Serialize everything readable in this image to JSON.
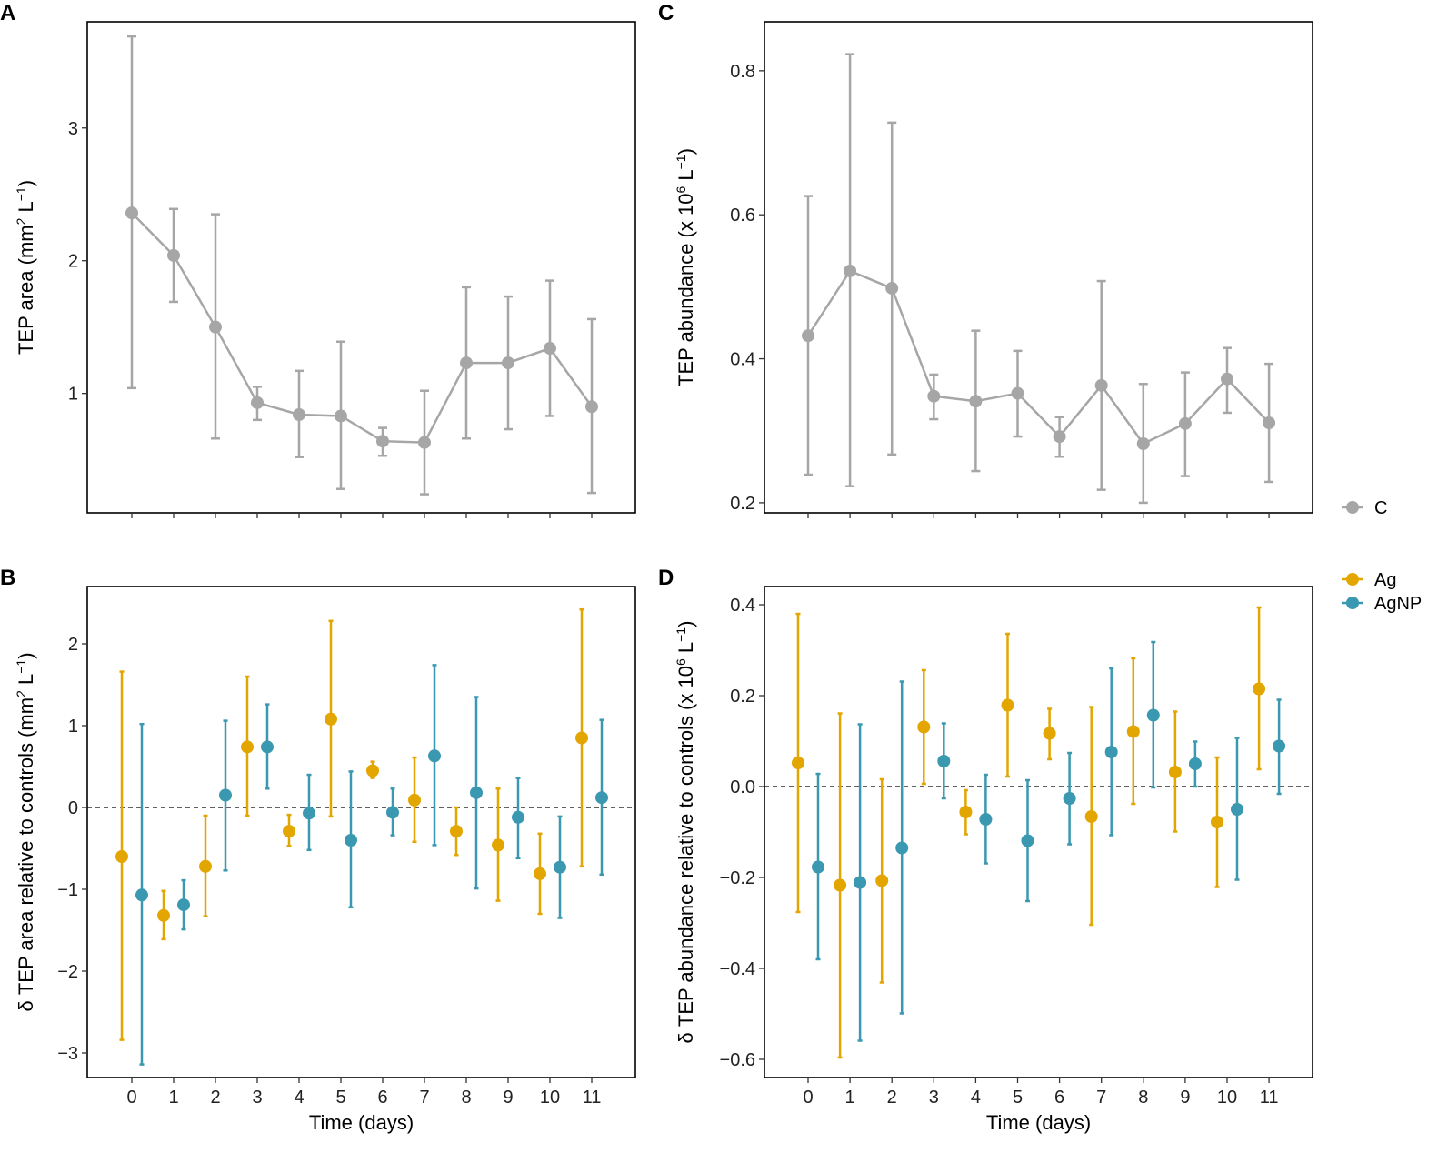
{
  "colors": {
    "C": "#a6a6a6",
    "Ag": "#e3a500",
    "AgNP": "#3a98b0"
  },
  "legend": [
    {
      "key": "C",
      "label": "C"
    },
    {
      "key": "Ag",
      "label": "Ag"
    },
    {
      "key": "AgNP",
      "label": "AgNP"
    }
  ],
  "chart_data": [
    {
      "panel": "A",
      "type": "line",
      "xlabel": "",
      "ylabel_parts": [
        [
          "TEP area (mm",
          ""
        ],
        [
          "2",
          "sup"
        ],
        [
          " L",
          ""
        ],
        [
          "−1",
          "sup"
        ],
        [
          ")",
          ""
        ]
      ],
      "x": [
        0,
        1,
        2,
        3,
        4,
        5,
        6,
        7,
        8,
        9,
        10,
        11
      ],
      "ylim": [
        0.1,
        3.8
      ],
      "yticks": [
        1,
        2,
        3
      ],
      "ytick_labels": [
        "1",
        "2",
        "3"
      ],
      "show_xtick_labels": false,
      "series": [
        {
          "name": "C",
          "color_key": "C",
          "values": [
            2.36,
            2.04,
            1.5,
            0.93,
            0.84,
            0.83,
            0.64,
            0.63,
            1.23,
            1.23,
            1.34,
            0.9
          ],
          "upper": [
            3.69,
            2.39,
            2.35,
            1.05,
            1.17,
            1.39,
            0.74,
            1.02,
            1.8,
            1.73,
            1.85,
            1.56
          ],
          "lower": [
            1.04,
            1.69,
            0.66,
            0.8,
            0.52,
            0.28,
            0.53,
            0.24,
            0.66,
            0.73,
            0.83,
            0.25
          ]
        }
      ]
    },
    {
      "panel": "B",
      "type": "scatter",
      "xlabel": "Time (days)",
      "ylabel_parts": [
        [
          "δ TEP area relative to controls (mm",
          ""
        ],
        [
          "2",
          "sup"
        ],
        [
          " L",
          ""
        ],
        [
          "−1",
          "sup"
        ],
        [
          ")",
          ""
        ]
      ],
      "x": [
        0,
        1,
        2,
        3,
        4,
        5,
        6,
        7,
        8,
        9,
        10,
        11
      ],
      "xtick_labels": [
        "0",
        "1",
        "2",
        "3",
        "4",
        "5",
        "6",
        "7",
        "8",
        "9",
        "10",
        "11"
      ],
      "ylim": [
        -3.3,
        2.7
      ],
      "yticks": [
        -3,
        -2,
        -1,
        0,
        1,
        2
      ],
      "ytick_labels": [
        "−3",
        "−2",
        "−1",
        "0",
        "1",
        "2"
      ],
      "hline": 0,
      "series": [
        {
          "name": "Ag",
          "color_key": "Ag",
          "values": [
            -0.6,
            -1.32,
            -0.72,
            0.74,
            -0.29,
            1.08,
            0.45,
            0.09,
            -0.29,
            -0.46,
            -0.81,
            0.85
          ],
          "upper": [
            1.66,
            -1.02,
            -0.1,
            1.6,
            -0.09,
            2.28,
            0.56,
            0.61,
            0.0,
            0.23,
            -0.32,
            2.42
          ],
          "lower": [
            -2.84,
            -1.61,
            -1.33,
            -0.1,
            -0.47,
            -0.11,
            0.36,
            -0.42,
            -0.58,
            -1.14,
            -1.3,
            -0.72
          ]
        },
        {
          "name": "AgNP",
          "color_key": "AgNP",
          "values": [
            -1.07,
            -1.19,
            0.15,
            0.74,
            -0.07,
            -0.4,
            -0.06,
            0.63,
            0.18,
            -0.12,
            -0.73,
            0.12
          ],
          "upper": [
            1.02,
            -0.89,
            1.06,
            1.26,
            0.4,
            0.44,
            0.23,
            1.74,
            1.35,
            0.36,
            -0.11,
            1.07
          ],
          "lower": [
            -3.14,
            -1.49,
            -0.77,
            0.23,
            -0.52,
            -1.22,
            -0.34,
            -0.46,
            -0.99,
            -0.62,
            -1.35,
            -0.82
          ]
        }
      ]
    },
    {
      "panel": "C",
      "type": "line",
      "xlabel": "",
      "ylabel_parts": [
        [
          "TEP abundance (x 10",
          ""
        ],
        [
          "6",
          "sup"
        ],
        [
          " L",
          ""
        ],
        [
          "−1",
          "sup"
        ],
        [
          ")",
          ""
        ]
      ],
      "x": [
        0,
        1,
        2,
        3,
        4,
        5,
        6,
        7,
        8,
        9,
        10,
        11
      ],
      "ylim": [
        0.186,
        0.868
      ],
      "yticks": [
        0.2,
        0.4,
        0.6,
        0.8
      ],
      "ytick_labels": [
        "0.2",
        "0.4",
        "0.6",
        "0.8"
      ],
      "show_xtick_labels": false,
      "series": [
        {
          "name": "C",
          "color_key": "C",
          "values": [
            0.432,
            0.522,
            0.498,
            0.348,
            0.341,
            0.352,
            0.292,
            0.363,
            0.282,
            0.31,
            0.372,
            0.311
          ],
          "upper": [
            0.626,
            0.823,
            0.728,
            0.378,
            0.439,
            0.411,
            0.319,
            0.508,
            0.365,
            0.381,
            0.415,
            0.393
          ],
          "lower": [
            0.239,
            0.223,
            0.267,
            0.316,
            0.244,
            0.292,
            0.264,
            0.218,
            0.2,
            0.237,
            0.325,
            0.229
          ]
        }
      ]
    },
    {
      "panel": "D",
      "type": "scatter",
      "xlabel": "Time (days)",
      "ylabel_parts": [
        [
          "δ TEP abundance relative to controls (x 10",
          ""
        ],
        [
          "6",
          "sup"
        ],
        [
          " L",
          ""
        ],
        [
          "−1",
          "sup"
        ],
        [
          ")",
          ""
        ]
      ],
      "x": [
        0,
        1,
        2,
        3,
        4,
        5,
        6,
        7,
        8,
        9,
        10,
        11
      ],
      "xtick_labels": [
        "0",
        "1",
        "2",
        "3",
        "4",
        "5",
        "6",
        "7",
        "8",
        "9",
        "10",
        "11"
      ],
      "ylim": [
        -0.64,
        0.44
      ],
      "yticks": [
        -0.6,
        -0.4,
        -0.2,
        0.0,
        0.2,
        0.4
      ],
      "ytick_labels": [
        "−0.6",
        "−0.4",
        "−0.2",
        "0.0",
        "0.2",
        "0.4"
      ],
      "hline": 0,
      "series": [
        {
          "name": "Ag",
          "color_key": "Ag",
          "values": [
            0.052,
            -0.217,
            -0.207,
            0.131,
            -0.056,
            0.179,
            0.117,
            -0.066,
            0.121,
            0.032,
            -0.078,
            0.215
          ],
          "upper": [
            0.38,
            0.161,
            0.016,
            0.256,
            -0.008,
            0.336,
            0.171,
            0.175,
            0.282,
            0.165,
            0.064,
            0.394
          ],
          "lower": [
            -0.276,
            -0.596,
            -0.431,
            0.006,
            -0.105,
            0.022,
            0.06,
            -0.304,
            -0.038,
            -0.099,
            -0.221,
            0.038
          ]
        },
        {
          "name": "AgNP",
          "color_key": "AgNP",
          "values": [
            -0.177,
            -0.211,
            -0.135,
            0.056,
            -0.072,
            -0.119,
            -0.026,
            0.076,
            0.157,
            0.05,
            -0.05,
            0.089
          ],
          "upper": [
            0.028,
            0.137,
            0.231,
            0.139,
            0.026,
            0.014,
            0.074,
            0.26,
            0.318,
            0.099,
            0.107,
            0.191
          ],
          "lower": [
            -0.38,
            -0.559,
            -0.499,
            -0.026,
            -0.169,
            -0.252,
            -0.127,
            -0.107,
            -0.002,
            0.0,
            -0.205,
            -0.016
          ]
        }
      ]
    }
  ]
}
